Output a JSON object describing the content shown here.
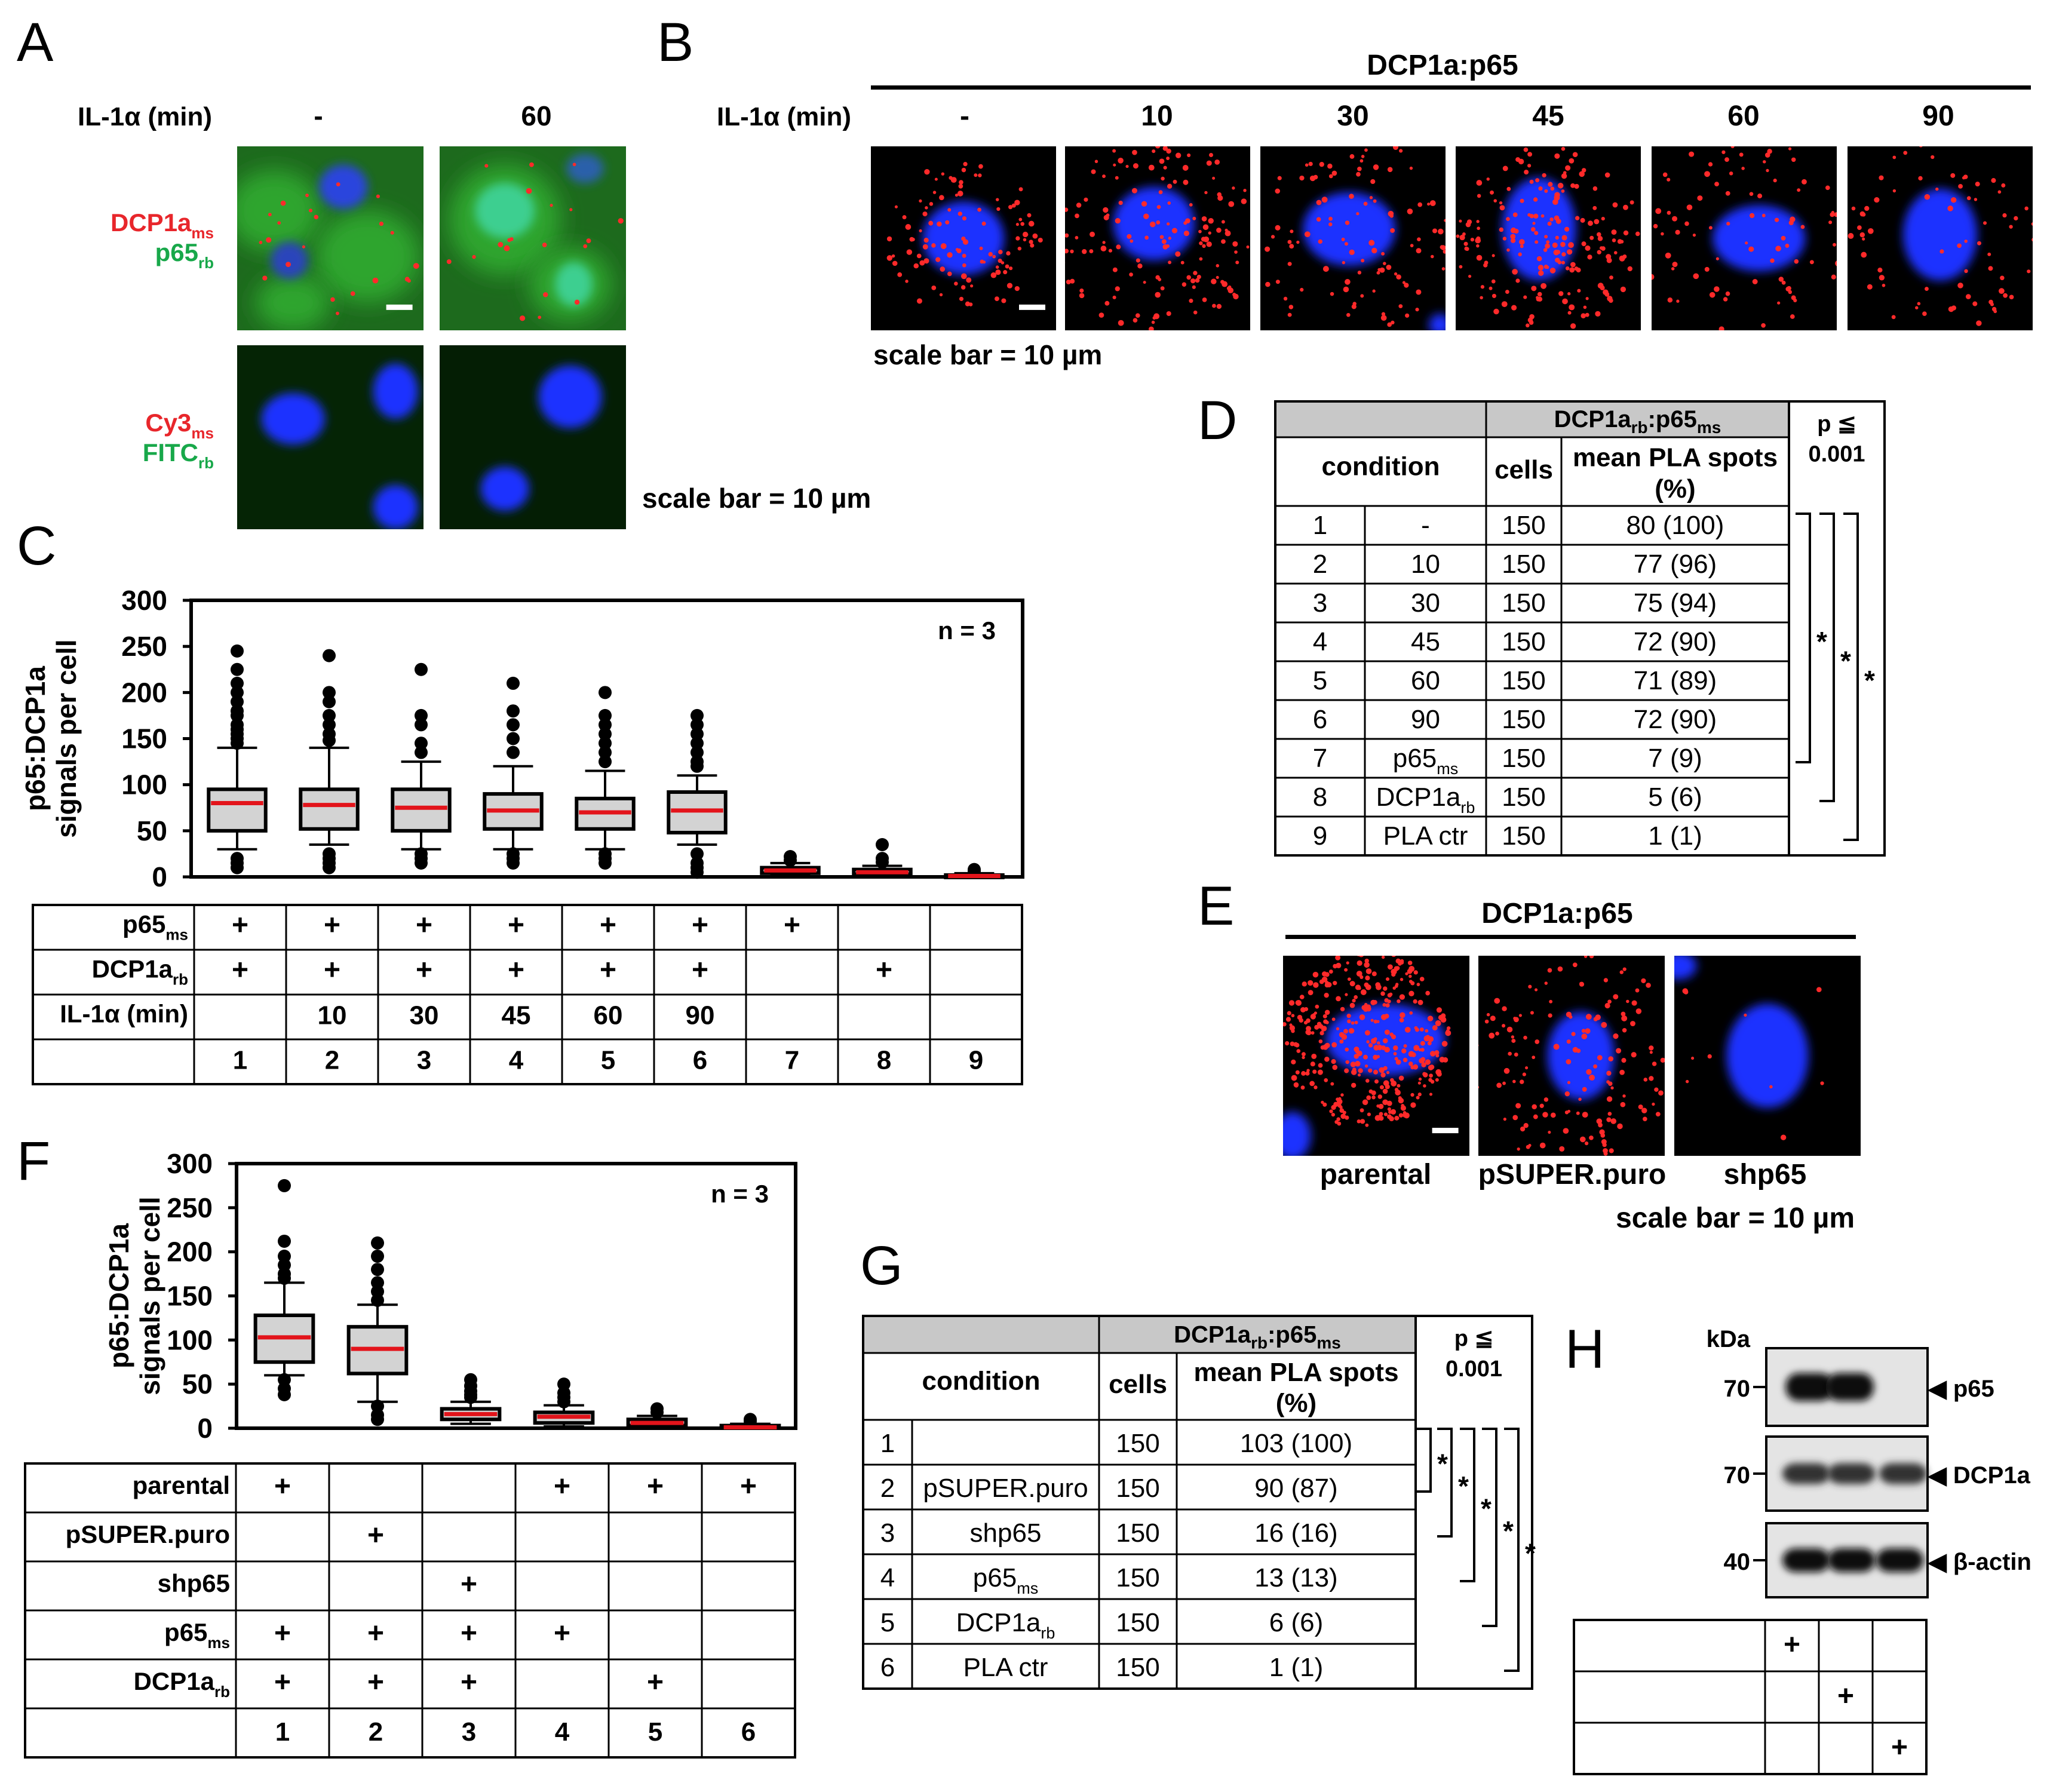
{
  "panels": {
    "A": {
      "letter": "A",
      "row_label": "IL-1α (min)",
      "columns": [
        "-",
        "60"
      ],
      "rows": [
        {
          "red_base": "DCP1a",
          "red_sub": "ms",
          "green_base": "p65",
          "green_sub": "rb"
        },
        {
          "red_base": "Cy3",
          "red_sub": "ms",
          "green_base": "FITC",
          "green_sub": "rb"
        }
      ],
      "scale_bar": "scale bar = 10 µm"
    },
    "B": {
      "letter": "B",
      "title": "DCP1a:p65",
      "row_label": "IL-1α (min)",
      "columns": [
        "-",
        "10",
        "30",
        "45",
        "60",
        "90"
      ],
      "scale_bar": "scale bar = 10 µm"
    },
    "C": {
      "letter": "C",
      "n_label": "n = 3",
      "y_label_line1": "p65:DCP1a",
      "y_label_line2": "signals per cell",
      "y_ticks": [
        "300",
        "250",
        "200",
        "150",
        "100",
        "50",
        "0"
      ],
      "row_labels": [
        {
          "base": "p65",
          "sub": "ms"
        },
        {
          "base": "DCP1a",
          "sub": "rb"
        },
        {
          "base": "IL-1α (min)",
          "sub": ""
        },
        {
          "base": "",
          "sub": ""
        }
      ],
      "grid": [
        [
          "+",
          "+",
          "+",
          "+",
          "+",
          "+",
          "+",
          "",
          ""
        ],
        [
          "+",
          "+",
          "+",
          "+",
          "+",
          "+",
          "",
          "+",
          ""
        ],
        [
          "",
          "10",
          "30",
          "45",
          "60",
          "90",
          "",
          "",
          ""
        ],
        [
          "1",
          "2",
          "3",
          "4",
          "5",
          "6",
          "7",
          "8",
          "9"
        ]
      ]
    },
    "D": {
      "letter": "D",
      "header_base": "DCP1a",
      "header_sub1": "rb",
      "header_mid": ":p65",
      "header_sub2": "ms",
      "col_condition": "condition",
      "col_cells": "cells",
      "col_mean_line1": "mean PLA spots",
      "col_mean_line2": "(%)",
      "p_label": "p ≦",
      "p_value": "0.001",
      "rows": [
        {
          "n": "1",
          "cond": "-",
          "sub": "",
          "cells": "150",
          "mean": "80 (100)"
        },
        {
          "n": "2",
          "cond": "10",
          "sub": "",
          "cells": "150",
          "mean": "77 (96)"
        },
        {
          "n": "3",
          "cond": "30",
          "sub": "",
          "cells": "150",
          "mean": "75 (94)"
        },
        {
          "n": "4",
          "cond": "45",
          "sub": "",
          "cells": "150",
          "mean": "72 (90)"
        },
        {
          "n": "5",
          "cond": "60",
          "sub": "",
          "cells": "150",
          "mean": "71 (89)"
        },
        {
          "n": "6",
          "cond": "90",
          "sub": "",
          "cells": "150",
          "mean": "72 (90)"
        },
        {
          "n": "7",
          "cond": "p65",
          "sub": "ms",
          "cells": "150",
          "mean": "7 (9)"
        },
        {
          "n": "8",
          "cond": "DCP1a",
          "sub": "rb",
          "cells": "150",
          "mean": "5 (6)"
        },
        {
          "n": "9",
          "cond": "PLA ctr",
          "sub": "",
          "cells": "150",
          "mean": "1 (1)"
        }
      ],
      "star": "*"
    },
    "E": {
      "letter": "E",
      "title": "DCP1a:p65",
      "columns": [
        "parental",
        "pSUPER.puro",
        "shp65"
      ],
      "scale_bar": "scale bar = 10 µm"
    },
    "F": {
      "letter": "F",
      "n_label": "n = 3",
      "y_label_line1": "p65:DCP1a",
      "y_label_line2": "signals per cell",
      "y_ticks": [
        "300",
        "250",
        "200",
        "150",
        "100",
        "50",
        "0"
      ],
      "row_labels": [
        {
          "base": "parental",
          "sub": ""
        },
        {
          "base": "pSUPER.puro",
          "sub": ""
        },
        {
          "base": "shp65",
          "sub": ""
        },
        {
          "base": "p65",
          "sub": "ms"
        },
        {
          "base": "DCP1a",
          "sub": "rb"
        },
        {
          "base": "",
          "sub": ""
        }
      ],
      "grid": [
        [
          "+",
          "",
          "",
          "+",
          "+",
          "+"
        ],
        [
          "",
          "+",
          "",
          "",
          "",
          ""
        ],
        [
          "",
          "",
          "+",
          "",
          "",
          ""
        ],
        [
          "+",
          "+",
          "+",
          "+",
          "",
          ""
        ],
        [
          "+",
          "+",
          "+",
          "",
          "+",
          ""
        ],
        [
          "1",
          "2",
          "3",
          "4",
          "5",
          "6"
        ]
      ]
    },
    "G": {
      "letter": "G",
      "header_base": "DCP1a",
      "header_sub1": "rb",
      "header_mid": ":p65",
      "header_sub2": "ms",
      "col_condition": "condition",
      "col_cells": "cells",
      "col_mean_line1": "mean PLA spots",
      "col_mean_line2": "(%)",
      "p_label": "p ≦",
      "p_value": "0.001",
      "rows": [
        {
          "n": "1",
          "cond": "",
          "sub": "",
          "cells": "150",
          "mean": "103 (100)"
        },
        {
          "n": "2",
          "cond": "pSUPER.puro",
          "sub": "",
          "cells": "150",
          "mean": "90 (87)"
        },
        {
          "n": "3",
          "cond": "shp65",
          "sub": "",
          "cells": "150",
          "mean": "16 (16)"
        },
        {
          "n": "4",
          "cond": "p65",
          "sub": "ms",
          "cells": "150",
          "mean": "13 (13)"
        },
        {
          "n": "5",
          "cond": "DCP1a",
          "sub": "rb",
          "cells": "150",
          "mean": "6 (6)"
        },
        {
          "n": "6",
          "cond": "PLA ctr",
          "sub": "",
          "cells": "150",
          "mean": "1 (1)"
        }
      ],
      "star": "*"
    },
    "H": {
      "letter": "H",
      "kda": "kDa",
      "markers": [
        "70",
        "70",
        "40"
      ],
      "bands": [
        "◀ p65",
        "◀ DCP1a",
        "◀ β-actin"
      ],
      "row_labels": [
        "parental",
        "pSUPER.puro",
        "shp65"
      ],
      "grid": [
        [
          "+",
          "",
          ""
        ],
        [
          "",
          "+",
          ""
        ],
        [
          "",
          "",
          "+"
        ]
      ]
    }
  },
  "chart_data": [
    {
      "type": "box",
      "panel": "C",
      "categories": [
        "1",
        "2",
        "3",
        "4",
        "5",
        "6",
        "7",
        "8",
        "9"
      ],
      "y_axis_label": "p65:DCP1a signals per cell",
      "ylim": [
        0,
        300
      ],
      "grid": false,
      "boxes": [
        {
          "median": 80,
          "q1": 50,
          "q3": 95,
          "whisker_low": 30,
          "whisker_high": 140,
          "outliers": [
            245,
            225,
            210,
            200,
            190,
            180,
            175,
            165,
            160,
            155,
            150,
            145,
            20,
            15,
            10
          ]
        },
        {
          "median": 78,
          "q1": 52,
          "q3": 95,
          "whisker_low": 35,
          "whisker_high": 140,
          "outliers": [
            240,
            200,
            190,
            175,
            165,
            155,
            148,
            25,
            20,
            15,
            10
          ]
        },
        {
          "median": 75,
          "q1": 50,
          "q3": 95,
          "whisker_low": 30,
          "whisker_high": 125,
          "outliers": [
            225,
            175,
            165,
            145,
            135,
            25,
            20,
            15
          ]
        },
        {
          "median": 72,
          "q1": 52,
          "q3": 90,
          "whisker_low": 30,
          "whisker_high": 120,
          "outliers": [
            210,
            180,
            165,
            150,
            135,
            25,
            20,
            15
          ]
        },
        {
          "median": 70,
          "q1": 52,
          "q3": 85,
          "whisker_low": 30,
          "whisker_high": 115,
          "outliers": [
            200,
            175,
            165,
            155,
            145,
            135,
            125,
            25,
            20,
            15
          ]
        },
        {
          "median": 72,
          "q1": 48,
          "q3": 92,
          "whisker_low": 35,
          "whisker_high": 110,
          "outliers": [
            175,
            165,
            155,
            145,
            135,
            125,
            120,
            25,
            15,
            10,
            5
          ]
        },
        {
          "median": 7,
          "q1": 4,
          "q3": 10,
          "whisker_low": 1,
          "whisker_high": 15,
          "outliers": [
            22,
            18
          ]
        },
        {
          "median": 5,
          "q1": 3,
          "q3": 8,
          "whisker_low": 1,
          "whisker_high": 12,
          "outliers": [
            35,
            20,
            16
          ]
        },
        {
          "median": 1,
          "q1": 0,
          "q3": 2,
          "whisker_low": 0,
          "whisker_high": 4,
          "outliers": [
            8,
            6
          ]
        }
      ]
    },
    {
      "type": "box",
      "panel": "F",
      "categories": [
        "1",
        "2",
        "3",
        "4",
        "5",
        "6"
      ],
      "y_axis_label": "p65:DCP1a signals per cell",
      "ylim": [
        0,
        300
      ],
      "grid": false,
      "boxes": [
        {
          "median": 103,
          "q1": 75,
          "q3": 128,
          "whisker_low": 60,
          "whisker_high": 165,
          "outliers": [
            275,
            212,
            195,
            185,
            175,
            170,
            55,
            45,
            38
          ]
        },
        {
          "median": 90,
          "q1": 62,
          "q3": 115,
          "whisker_low": 30,
          "whisker_high": 140,
          "outliers": [
            210,
            195,
            180,
            165,
            155,
            145,
            25,
            15,
            10
          ]
        },
        {
          "median": 16,
          "q1": 10,
          "q3": 22,
          "whisker_low": 5,
          "whisker_high": 30,
          "outliers": [
            55,
            48,
            42,
            38,
            35
          ]
        },
        {
          "median": 13,
          "q1": 6,
          "q3": 18,
          "whisker_low": 2,
          "whisker_high": 26,
          "outliers": [
            50,
            40,
            35,
            30
          ]
        },
        {
          "median": 6,
          "q1": 3,
          "q3": 10,
          "whisker_low": 1,
          "whisker_high": 14,
          "outliers": [
            22,
            18
          ]
        },
        {
          "median": 1,
          "q1": 0,
          "q3": 3,
          "whisker_low": 0,
          "whisker_high": 5,
          "outliers": [
            10,
            8
          ]
        }
      ]
    }
  ]
}
